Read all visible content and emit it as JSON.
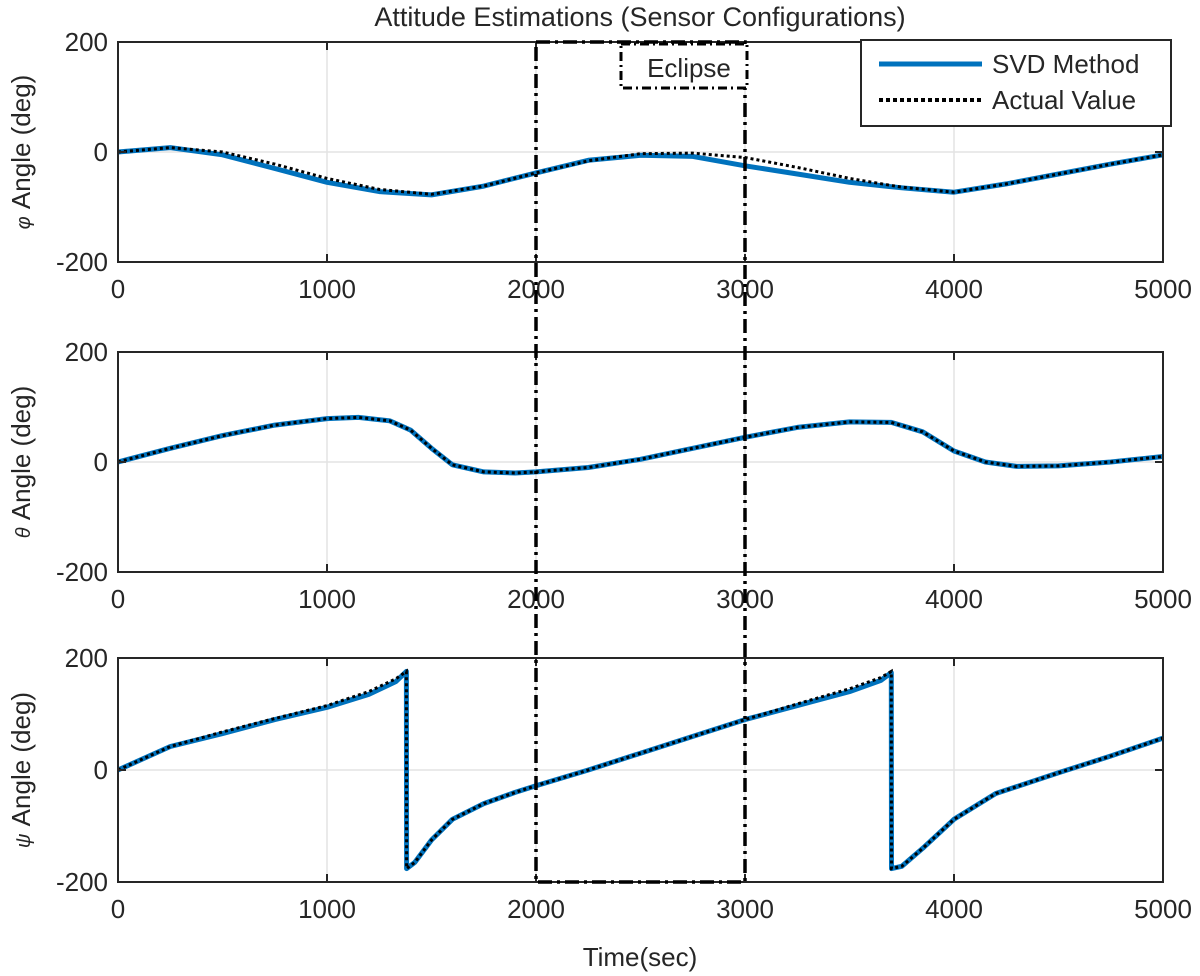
{
  "chart_data": {
    "title": "Attitude Estimations (Sensor Configurations)",
    "xlabel": "Time(sec)",
    "xlim": [
      0,
      5000
    ],
    "xticks": [
      "0",
      "1000",
      "2000",
      "3000",
      "4000",
      "5000"
    ],
    "grid": true,
    "legend": {
      "placement": "top-right",
      "entries": [
        {
          "label": "SVD Method",
          "color": "#0072BD",
          "style": "solid"
        },
        {
          "label": "Actual Value",
          "color": "#000000",
          "style": "dotted"
        }
      ]
    },
    "annotation": {
      "label": "Eclipse",
      "x_range": [
        2000,
        3000
      ]
    },
    "subplots": [
      {
        "type": "line",
        "ylabel_symbol": "φ",
        "ylabel_text": "Angle (deg)",
        "ylim": [
          -200,
          200
        ],
        "yticks": [
          "200",
          "0",
          "-200"
        ],
        "x": [
          0,
          250,
          500,
          750,
          1000,
          1250,
          1500,
          1750,
          2000,
          2250,
          2500,
          2750,
          3000,
          3250,
          3500,
          3750,
          4000,
          4250,
          4500,
          4750,
          5000
        ],
        "series": [
          {
            "name": "SVD Method",
            "values": [
              0,
              8,
              -5,
              -30,
              -55,
              -72,
              -78,
              -62,
              -38,
              -15,
              -6,
              -8,
              -25,
              -40,
              -55,
              -65,
              -73,
              -58,
              -40,
              -22,
              -5
            ]
          },
          {
            "name": "Actual Value",
            "values": [
              0,
              8,
              0,
              -22,
              -48,
              -68,
              -77,
              -62,
              -38,
              -16,
              -3,
              -2,
              -10,
              -28,
              -48,
              -64,
              -73,
              -58,
              -40,
              -22,
              -5
            ]
          }
        ]
      },
      {
        "type": "line",
        "ylabel_symbol": "θ",
        "ylabel_text": "Angle (deg)",
        "ylim": [
          -200,
          200
        ],
        "yticks": [
          "200",
          "0",
          "-200"
        ],
        "x": [
          0,
          250,
          500,
          750,
          1000,
          1150,
          1300,
          1400,
          1500,
          1600,
          1750,
          1900,
          2000,
          2250,
          2500,
          2750,
          3000,
          3250,
          3500,
          3700,
          3850,
          4000,
          4150,
          4300,
          4500,
          4750,
          5000
        ],
        "series": [
          {
            "name": "SVD Method",
            "values": [
              0,
              25,
              48,
              67,
              79,
              81,
              75,
              58,
              25,
              -5,
              -18,
              -20,
              -18,
              -10,
              5,
              25,
              45,
              63,
              73,
              72,
              55,
              20,
              0,
              -8,
              -7,
              0,
              10
            ]
          },
          {
            "name": "Actual Value",
            "values": [
              0,
              25,
              48,
              67,
              79,
              81,
              75,
              58,
              25,
              -5,
              -18,
              -20,
              -18,
              -10,
              5,
              25,
              45,
              63,
              73,
              72,
              55,
              20,
              0,
              -8,
              -7,
              0,
              10
            ]
          }
        ]
      },
      {
        "type": "line",
        "ylabel_symbol": "ψ",
        "ylabel_text": "Angle (deg)",
        "ylim": [
          -200,
          200
        ],
        "yticks": [
          "200",
          "0",
          "-200"
        ],
        "x": [
          0,
          250,
          500,
          750,
          1000,
          1200,
          1330,
          1380,
          1381,
          1420,
          1500,
          1600,
          1750,
          1900,
          2000,
          2250,
          2500,
          2750,
          3000,
          3250,
          3500,
          3650,
          3700,
          3701,
          3750,
          3850,
          4000,
          4200,
          4500,
          4750,
          5000
        ],
        "series": [
          {
            "name": "SVD Method",
            "values": [
              0,
              42,
              65,
              90,
              112,
              135,
              158,
              176,
              -176,
              -165,
              -125,
              -88,
              -60,
              -40,
              -28,
              0,
              30,
              60,
              90,
              115,
              140,
              160,
              174,
              -176,
              -172,
              -140,
              -88,
              -42,
              -5,
              25,
              57
            ]
          },
          {
            "name": "Actual Value",
            "values": [
              0,
              42,
              68,
              92,
              115,
              140,
              163,
              176,
              -176,
              -165,
              -125,
              -88,
              -60,
              -40,
              -28,
              0,
              30,
              60,
              90,
              118,
              145,
              165,
              176,
              -176,
              -172,
              -140,
              -88,
              -42,
              -5,
              25,
              57
            ]
          }
        ]
      }
    ]
  }
}
